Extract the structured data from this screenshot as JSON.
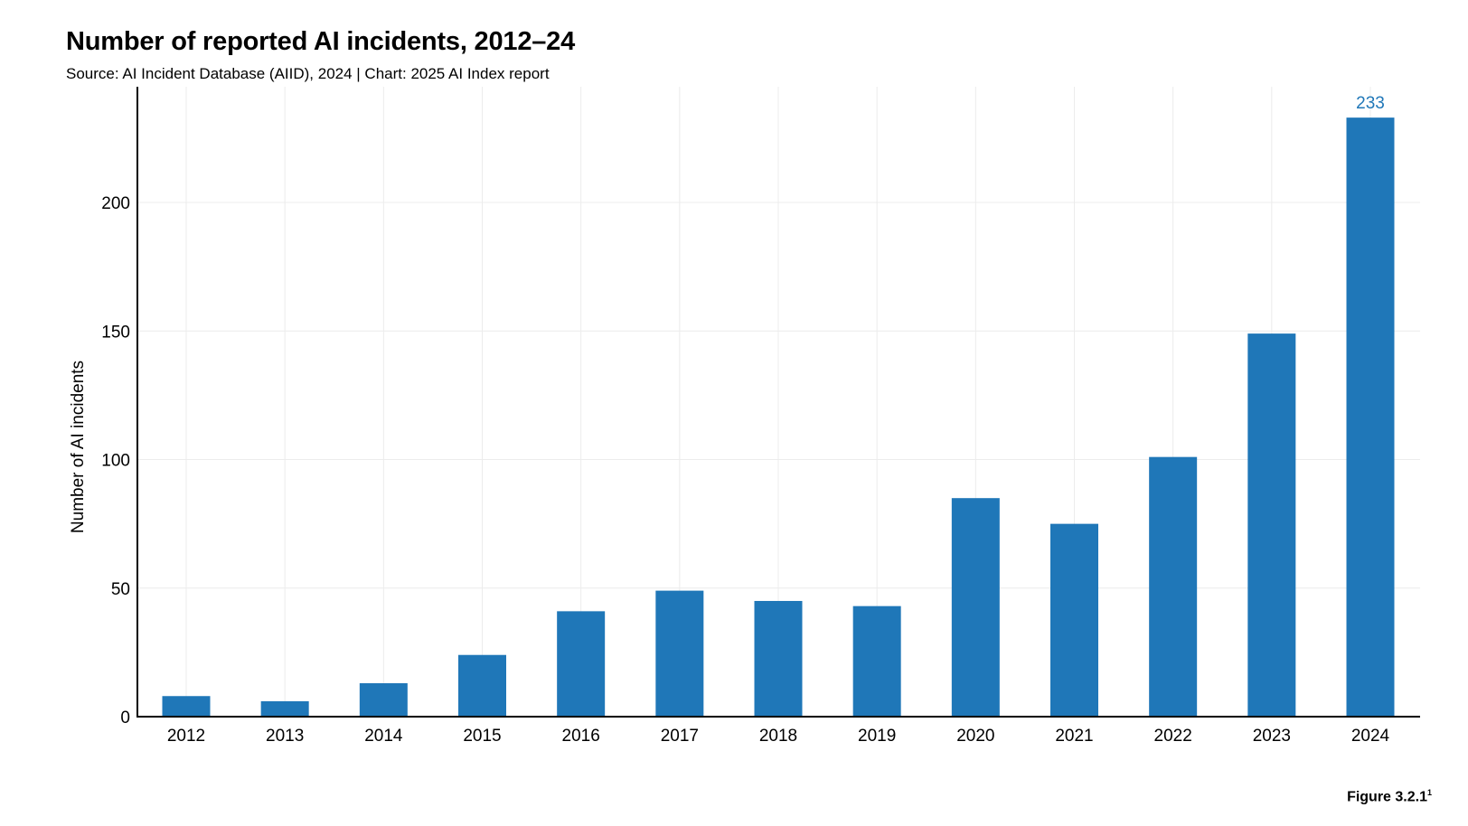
{
  "header": {
    "title": "Number of reported AI incidents, 2012–24",
    "subtitle": "Source: AI Incident Database (AIID), 2024 | Chart: 2025 AI Index report"
  },
  "footer": {
    "figure_label": "Figure 3.2.1",
    "figure_footnote_mark": "1"
  },
  "colors": {
    "bar": "#1f77b8",
    "data_label": "#1f77b8",
    "grid": "#ececec",
    "axis": "#000000"
  },
  "chart_data": {
    "type": "bar",
    "title": "Number of reported AI incidents, 2012–24",
    "xlabel": "",
    "ylabel": "Number of AI incidents",
    "categories": [
      "2012",
      "2013",
      "2014",
      "2015",
      "2016",
      "2017",
      "2018",
      "2019",
      "2020",
      "2021",
      "2022",
      "2023",
      "2024"
    ],
    "series": [
      {
        "values": [
          8,
          6,
          13,
          24,
          41,
          49,
          45,
          43,
          85,
          75,
          101,
          149,
          233
        ]
      }
    ],
    "ylim": [
      0,
      245
    ],
    "yticks": [
      0,
      50,
      100,
      150,
      200
    ],
    "data_labels": [
      {
        "category": "2024",
        "text": "233"
      }
    ],
    "grid": true,
    "legend": "none"
  }
}
